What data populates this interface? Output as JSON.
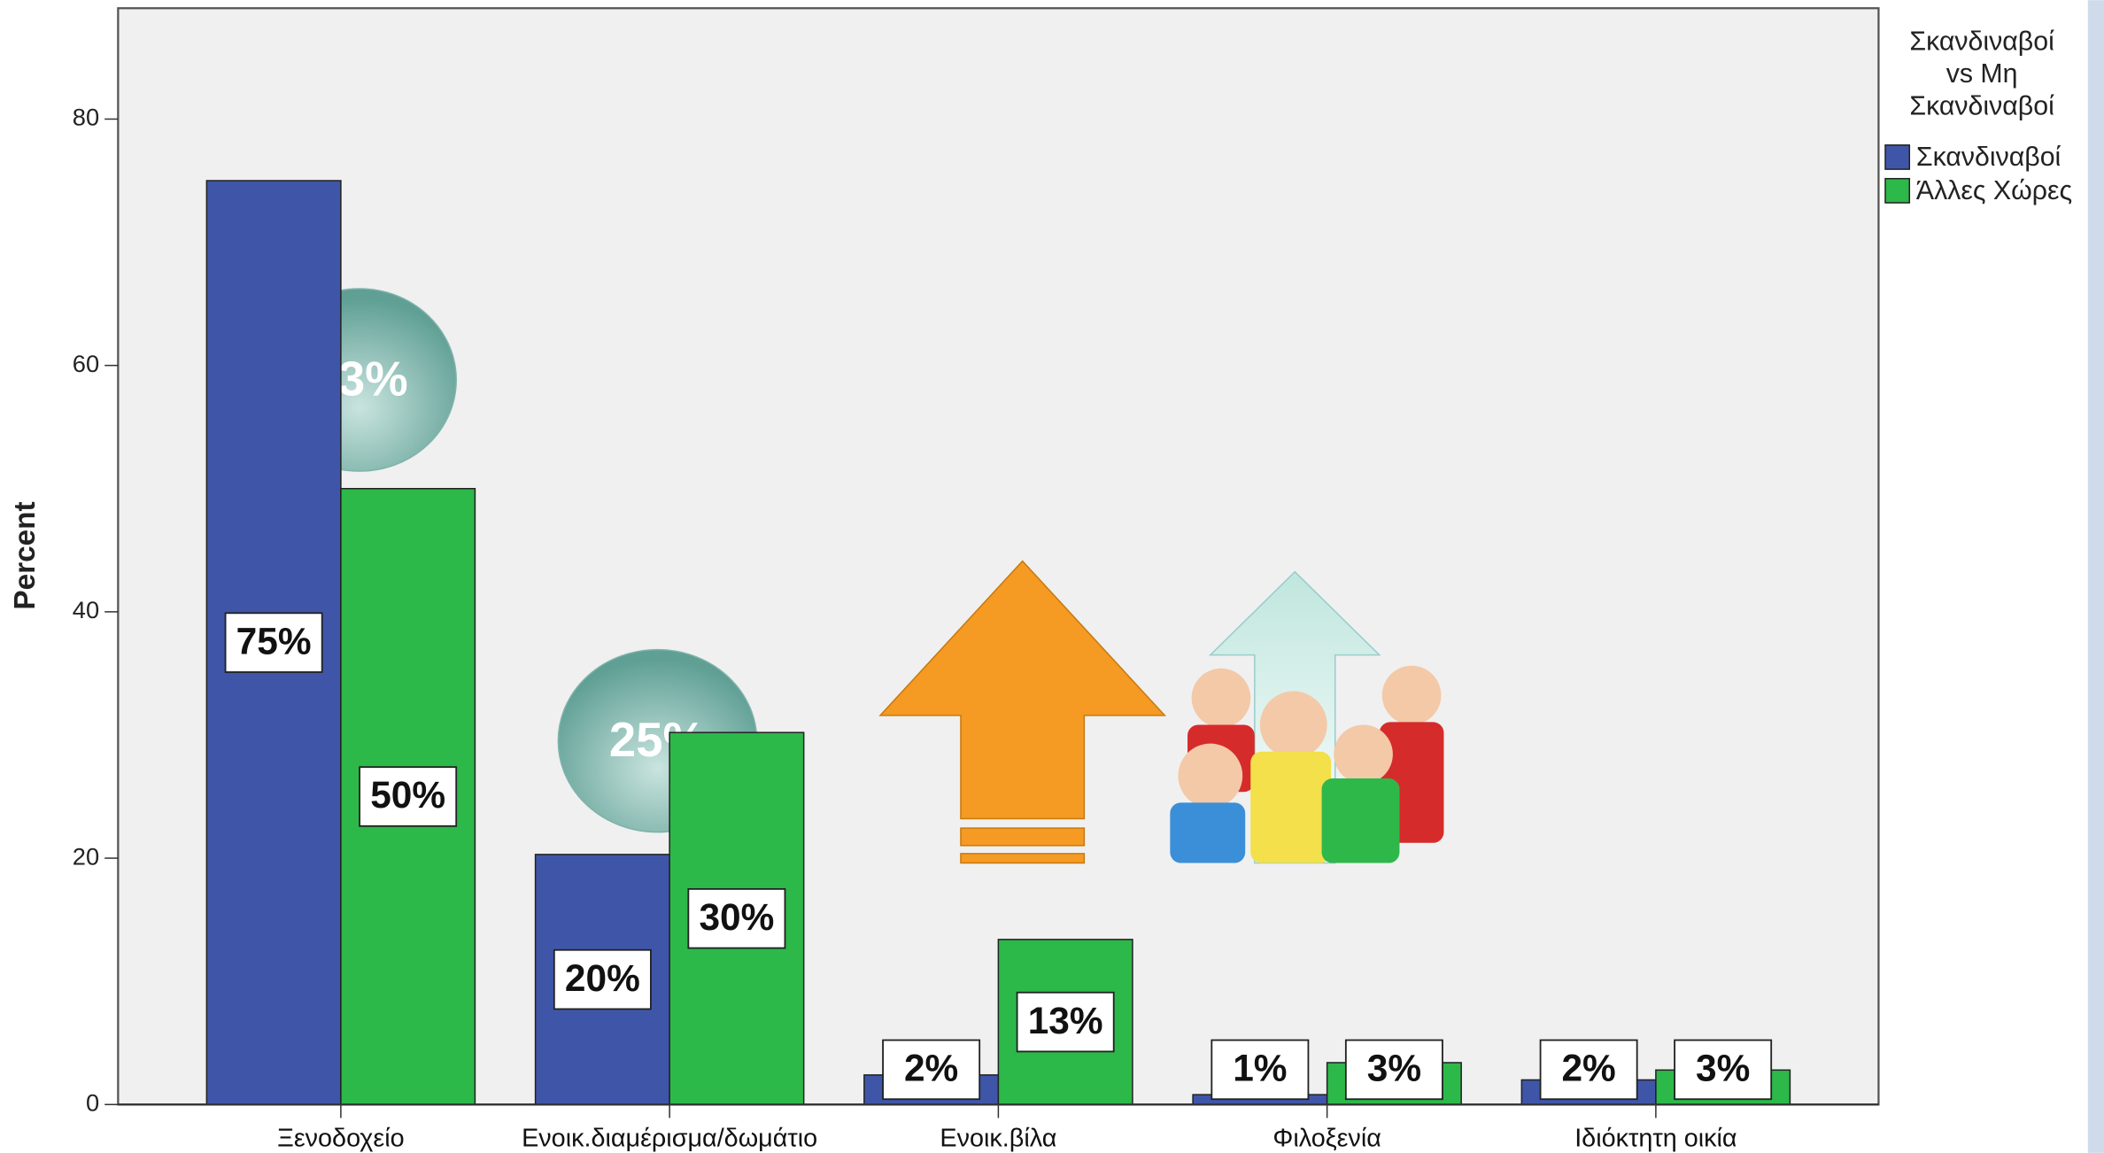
{
  "chart_data": {
    "type": "bar",
    "y_label": "Percent",
    "legend_title": "Σκανδιναβοί vs Μη Σκανδιναβοί",
    "categories": [
      "Ξενοδοχείο",
      "Ενοικ.διαμέρισμα/δωμάτιο",
      "Ενοικ.βίλα",
      "Φιλοξενία",
      "Ιδιόκτητη οικία"
    ],
    "series": [
      {
        "name": "Σκανδιναβοί",
        "color": "#3f56a8",
        "values": [
          75,
          20.3,
          2.4,
          0.8,
          2.0
        ],
        "value_labels": [
          "75%",
          "20%",
          "2%",
          "1%",
          "2%"
        ]
      },
      {
        "name": "Άλλες Χώρες",
        "color": "#2db84a",
        "values": [
          50,
          30.2,
          13.4,
          3.4,
          2.8
        ],
        "value_labels": [
          "50%",
          "30%",
          "13%",
          "3%",
          "3%"
        ]
      }
    ],
    "ylim": [
      0,
      89
    ],
    "yticks": [
      0,
      20,
      40,
      60,
      80
    ],
    "annotations": [
      "63%",
      "25%"
    ]
  }
}
